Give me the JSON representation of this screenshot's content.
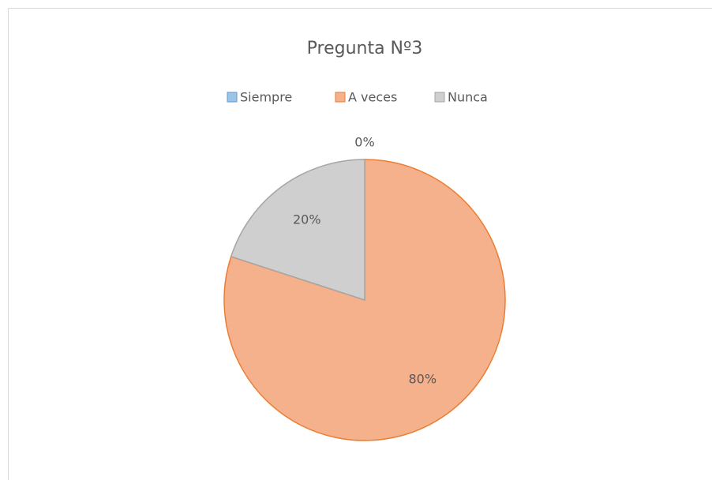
{
  "chart_data": {
    "type": "pie",
    "title": "Pregunta Nº3",
    "categories": [
      "Siempre",
      "A veces",
      "Nunca"
    ],
    "values": [
      0,
      80,
      20
    ],
    "value_labels": [
      "0%",
      "80%",
      "20%"
    ],
    "colors": [
      "#9dc3e6",
      "#f5b08c",
      "#cfcfcf"
    ],
    "edge_colors": [
      "#5b9bd5",
      "#ed7d31",
      "#a5a5a5"
    ],
    "legend": "top"
  }
}
